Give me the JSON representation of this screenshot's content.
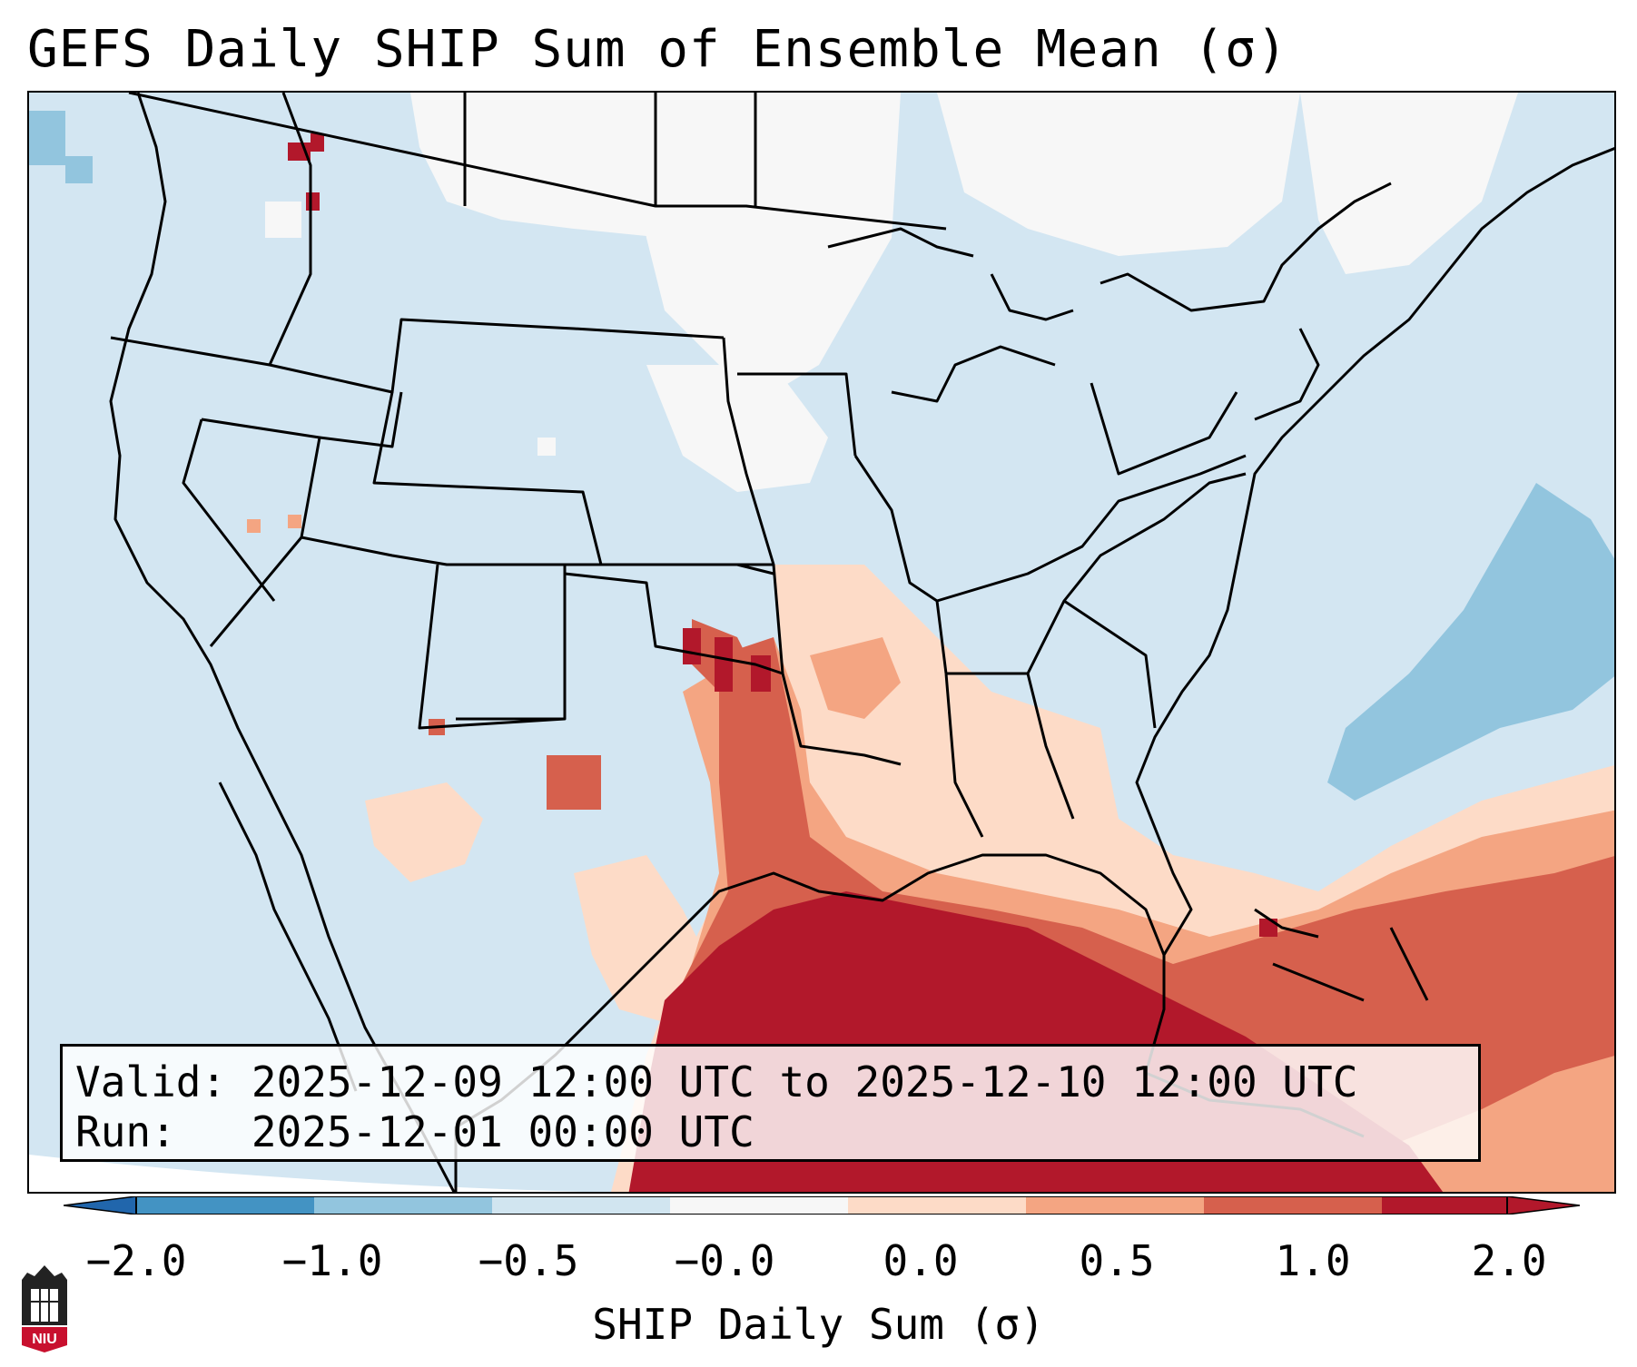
{
  "title": "GEFS Daily SHIP Sum of Ensemble Mean (σ)",
  "info": {
    "valid_label": "Valid:",
    "valid_value": "2025-12-09 12:00 UTC to 2025-12-10 12:00 UTC",
    "run_label": "Run:",
    "run_value": "2025-12-01 00:00 UTC"
  },
  "colorbar": {
    "label": "SHIP Daily Sum (σ)",
    "ticks": [
      "−2.0",
      "−1.0",
      "−0.5",
      "−0.0",
      "0.0",
      "0.5",
      "1.0",
      "2.0"
    ],
    "colors": [
      "#4393c3",
      "#92c5de",
      "#d1e5f0",
      "#f7f7f7",
      "#fddbc7",
      "#f4a582",
      "#d6604d",
      "#b2182b"
    ],
    "extend_low_color": "#2166ac",
    "extend_high_color": "#b2182b"
  },
  "logo": {
    "text": "NIU"
  }
}
